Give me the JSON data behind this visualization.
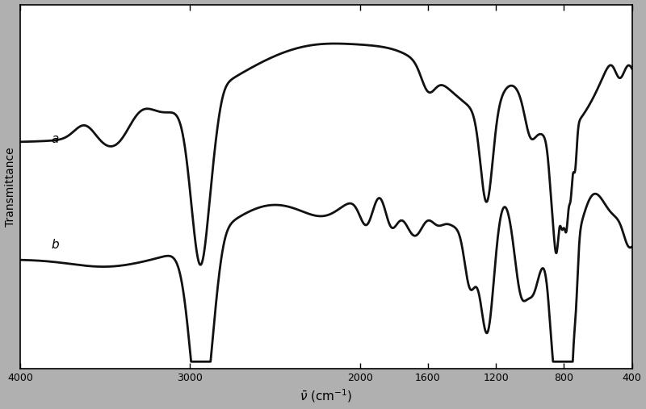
{
  "xlabel": "$\\bar{\\nu}$ (cm$^{-1}$)",
  "ylabel": "Transmittance",
  "xlim": [
    4000,
    400
  ],
  "ylim": [
    0,
    1
  ],
  "xticks": [
    4000,
    3000,
    2000,
    1600,
    1200,
    800,
    400
  ],
  "xtick_labels": [
    "4000",
    "3000",
    "2000",
    "1600",
    "1200",
    "800",
    "400"
  ],
  "label_a": "a",
  "label_b": "b",
  "fig_bg_color": "#b0b0b0",
  "plot_bg_color": "#ffffff",
  "line_color": "#111111",
  "line_width": 2.0,
  "label_fontsize": 11,
  "tick_fontsize": 9,
  "ylabel_fontsize": 10
}
